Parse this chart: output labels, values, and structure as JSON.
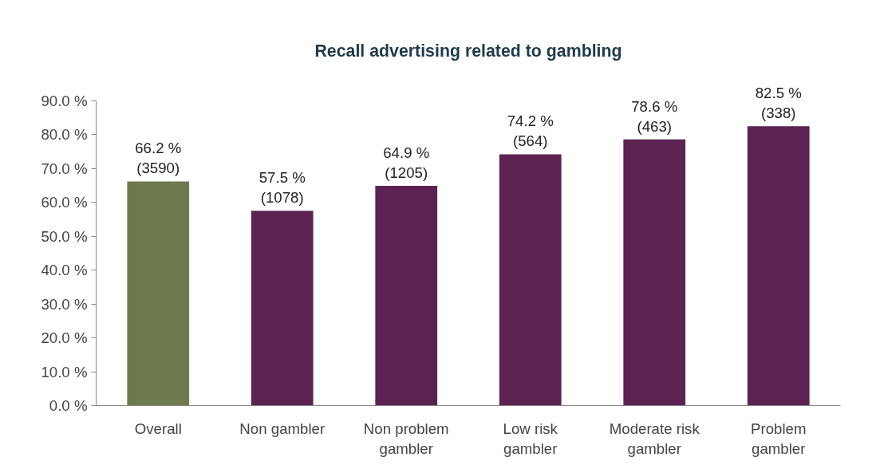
{
  "chart_data": {
    "type": "bar",
    "title": "Recall advertising related to gambling",
    "categories": [
      "Overall",
      "Non gambler",
      "Non problem gambler",
      "Low risk gambler",
      "Moderate risk gambler",
      "Problem gambler"
    ],
    "values": [
      66.2,
      57.5,
      64.9,
      74.2,
      78.6,
      82.5
    ],
    "colors": [
      "#6e7a4e",
      "#5c2352",
      "#5c2352",
      "#5c2352",
      "#5c2352",
      "#5c2352"
    ],
    "value_labels": [
      "66.2 %\n(3590)",
      "57.5 %\n(1078)",
      "64.9 %\n(1205)",
      "74.2 %\n(564)",
      "78.6 %\n(463)",
      "82.5 %\n(338)"
    ],
    "ylim": [
      0,
      90
    ],
    "yticks": [
      {
        "value": 0,
        "label": "0.0 %"
      },
      {
        "value": 10,
        "label": "10.0 %"
      },
      {
        "value": 20,
        "label": "20.0 %"
      },
      {
        "value": 30,
        "label": "30.0 %"
      },
      {
        "value": 40,
        "label": "40.0 %"
      },
      {
        "value": 50,
        "label": "50.0 %"
      },
      {
        "value": 60,
        "label": "60.0 %"
      },
      {
        "value": 70,
        "label": "70.0 %"
      },
      {
        "value": 80,
        "label": "80.0 %"
      },
      {
        "value": 90,
        "label": "90.0 %"
      }
    ],
    "grid": false
  }
}
